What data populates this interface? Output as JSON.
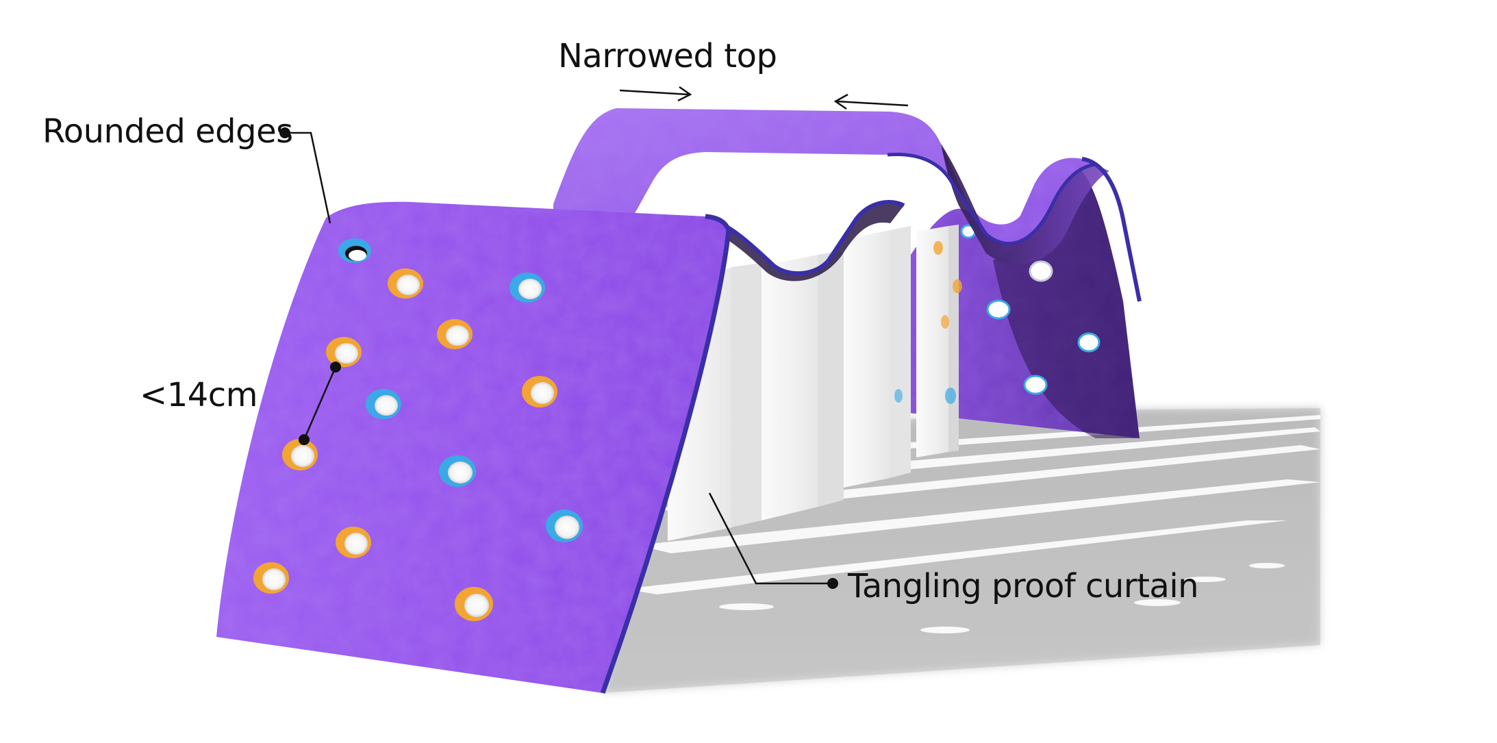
{
  "annotations": {
    "narrowed_top": "Narrowed top",
    "rounded_edges": "Rounded edges",
    "hole_spacing": "<14cm",
    "curtain": "Tangling proof curtain"
  },
  "colors": {
    "surface_purple": "#9a5cf0",
    "surface_edge": "#4a3bb8",
    "hold_orange": "#f2a533",
    "hold_blue": "#3aa9e6",
    "curtain_white": "#f2f2f2",
    "shadow_gray": "#9a9a9a",
    "annotation_line": "#111111"
  }
}
